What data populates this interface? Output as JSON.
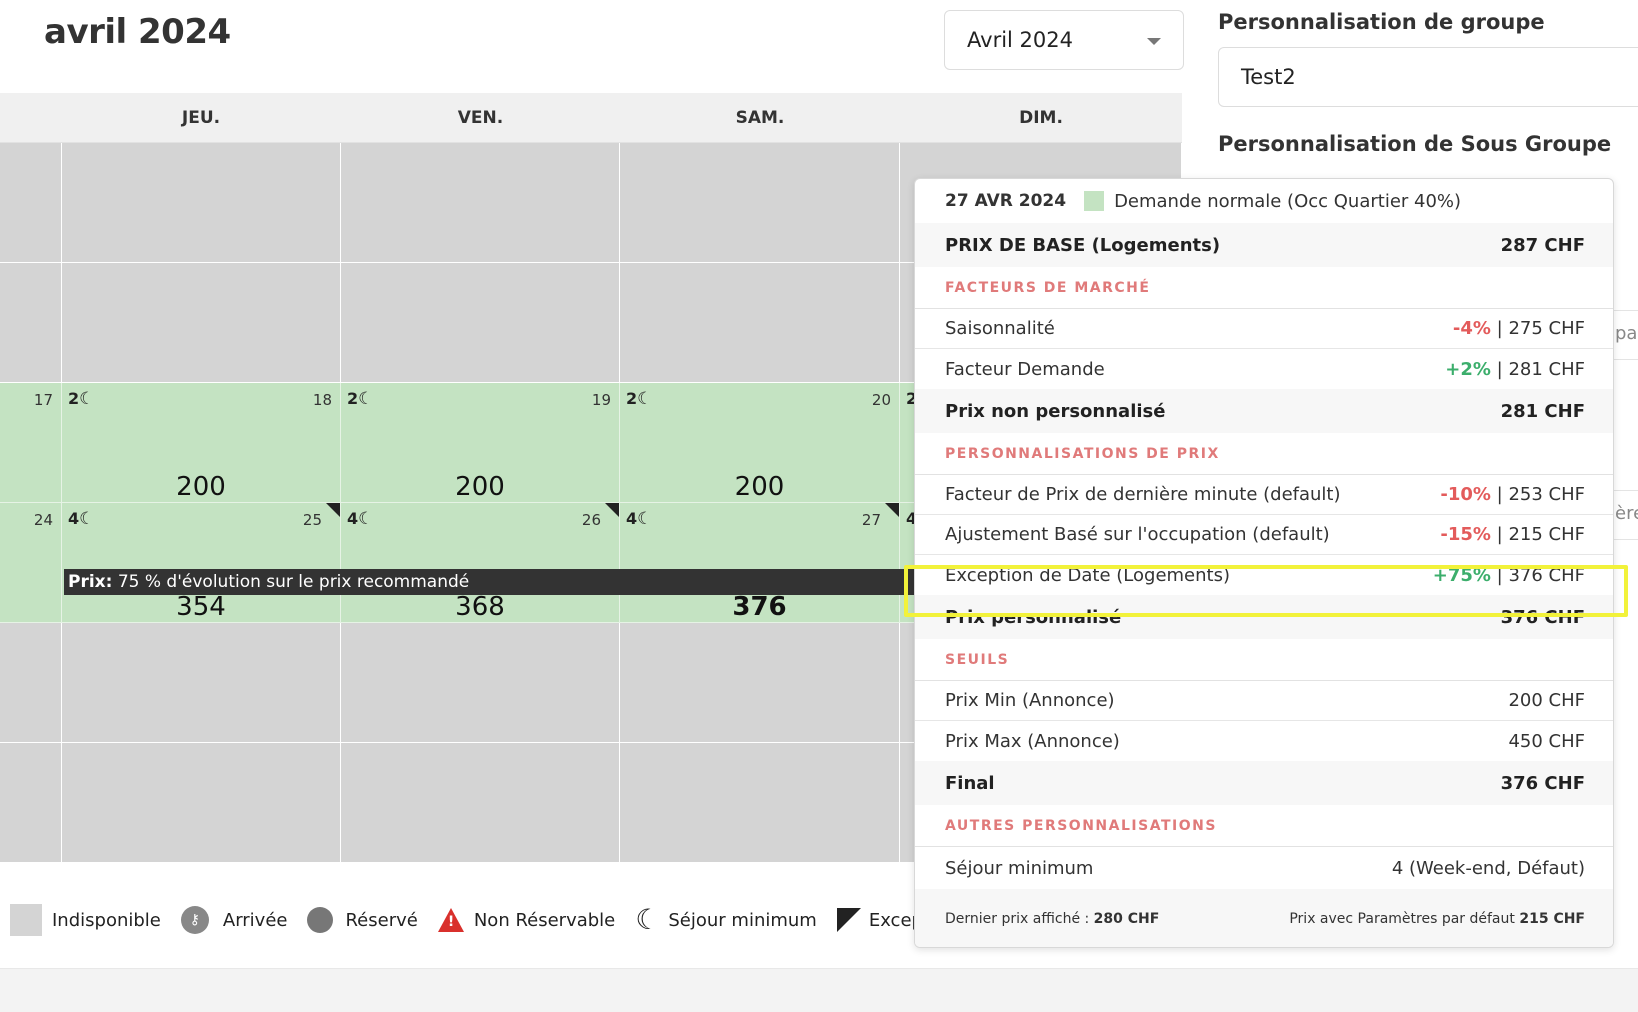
{
  "page": {
    "title": "avril 2024"
  },
  "month_select": {
    "value": "Avril 2024"
  },
  "side": {
    "group_label": "Personnalisation de groupe",
    "group_value": "Test2",
    "subgroup_label": "Personnalisation de Sous Groupe",
    "ghost_a": "pat",
    "ghost_b": "ère"
  },
  "calendar": {
    "days": [
      "JEU.",
      "VEN.",
      "SAM.",
      "DIM."
    ],
    "week3": {
      "date_prev": "17",
      "cells": [
        {
          "minstay": "2",
          "date": "18",
          "price": "200"
        },
        {
          "minstay": "2",
          "date": "19",
          "price": "200"
        },
        {
          "minstay": "2",
          "date": "20",
          "price": "200"
        },
        {
          "minstay": "2"
        }
      ]
    },
    "week4": {
      "date_prev": "24",
      "cells": [
        {
          "minstay": "4",
          "date": "25",
          "price": "354"
        },
        {
          "minstay": "4",
          "date": "26",
          "price": "368"
        },
        {
          "minstay": "4",
          "date": "27",
          "price": "376"
        },
        {
          "minstay": "4"
        }
      ]
    },
    "hover": {
      "label": "Prix:",
      "text": "75 % d'évolution sur le prix recommandé"
    }
  },
  "legend": {
    "unavailable": "Indisponible",
    "arrival": "Arrivée",
    "reserved": "Réservé",
    "not_bookable": "Non Réservable",
    "min_stay": "Séjour minimum",
    "exception": "Exception"
  },
  "popup": {
    "date": "27 AVR 2024",
    "demand": "Demande normale (Occ Quartier 40%)",
    "base_label": "PRIX DE BASE (Logements)",
    "base_value": "287 CHF",
    "sec_market": "FACTEURS DE MARCHÉ",
    "season_label": "Saisonnalité",
    "season_pct": "-4%",
    "season_val": "| 275 CHF",
    "demand_label": "Facteur Demande",
    "demand_pct": "+2%",
    "demand_val": "| 281 CHF",
    "nonpers_label": "Prix non personnalisé",
    "nonpers_value": "281 CHF",
    "sec_pers": "PERSONNALISATIONS DE PRIX",
    "lastmin_label": "Facteur de Prix de dernière minute (default)",
    "lastmin_pct": "-10%",
    "lastmin_val": "| 253 CHF",
    "occ_label": "Ajustement Basé sur l'occupation (default)",
    "occ_pct": "-15%",
    "occ_val": "| 215 CHF",
    "exc_label": "Exception de Date (Logements)",
    "exc_pct": "+75%",
    "exc_val": "| 376 CHF",
    "pers_label": "Prix personnalisé",
    "pers_value": "376 CHF",
    "sec_thresholds": "SEUILS",
    "min_label": "Prix Min (Annonce)",
    "min_value": "200 CHF",
    "max_label": "Prix Max (Annonce)",
    "max_value": "450 CHF",
    "final_label": "Final",
    "final_value": "376 CHF",
    "sec_other": "AUTRES PERSONNALISATIONS",
    "minstay_label": "Séjour minimum",
    "minstay_value": "4 (Week-end, Défaut)",
    "last_price_label": "Dernier prix affiché :",
    "last_price_value": "280 CHF",
    "default_price_label": "Prix avec Paramètres par défaut",
    "default_price_value": "215 CHF"
  },
  "colors": {
    "green_cell": "#c4e3c2",
    "gray_cell": "#d4d4d4",
    "negative": "#e35b5b",
    "positive": "#3cae6c",
    "section": "#e07a7a",
    "highlight": "#f2f23a"
  }
}
